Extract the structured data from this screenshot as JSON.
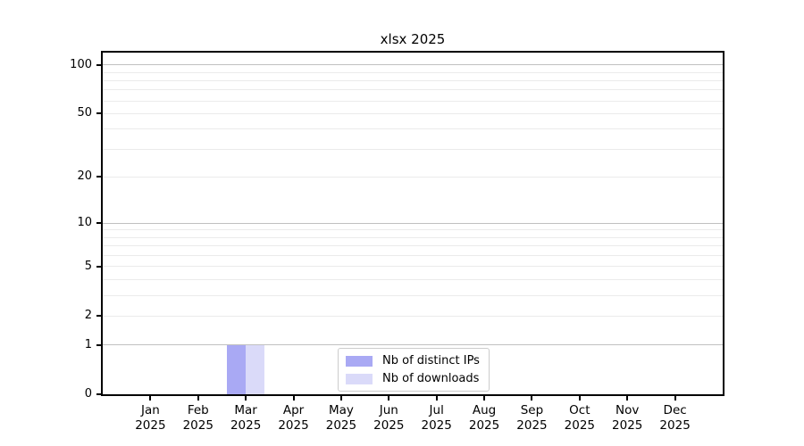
{
  "title": "xlsx 2025",
  "chart_data": {
    "type": "bar",
    "title": "xlsx 2025",
    "categories": [
      "Jan",
      "Feb",
      "Mar",
      "Apr",
      "May",
      "Jun",
      "Jul",
      "Aug",
      "Sep",
      "Oct",
      "Nov",
      "Dec"
    ],
    "x_year_label": "2025",
    "series": [
      {
        "name": "Nb of distinct IPs",
        "color": "#a9a9f4",
        "values": [
          0,
          0,
          1,
          0,
          0,
          0,
          0,
          0,
          0,
          0,
          0,
          0
        ]
      },
      {
        "name": "Nb of downloads",
        "color": "#dadaf9",
        "values": [
          0,
          0,
          1,
          0,
          0,
          0,
          0,
          0,
          0,
          0,
          0,
          0
        ]
      }
    ],
    "xlabel": "",
    "ylabel": "",
    "y_scale": "log10(value+1)",
    "ylim": [
      0,
      118
    ],
    "y_tick_values": [
      0,
      1,
      2,
      5,
      10,
      20,
      50,
      100
    ],
    "y_tick_labels": [
      "0",
      "1",
      "2",
      "5",
      "10",
      "20",
      "50",
      "100"
    ],
    "y_gridlines_major": [
      1,
      10,
      100
    ],
    "y_gridlines_minor": [
      2,
      3,
      4,
      5,
      6,
      7,
      8,
      9,
      20,
      30,
      40,
      50,
      60,
      70,
      80,
      90
    ],
    "grid": "on",
    "legend_position": "lower center"
  },
  "colors": {
    "background": "#ffffff",
    "spine": "#000000",
    "grid_major": "#c0c0c0",
    "grid_minor": "#ebebeb",
    "legend_border": "#cccccc",
    "text": "#000000",
    "bar_distinct_ips": "#a9a9f4",
    "bar_downloads": "#dadaf9"
  }
}
